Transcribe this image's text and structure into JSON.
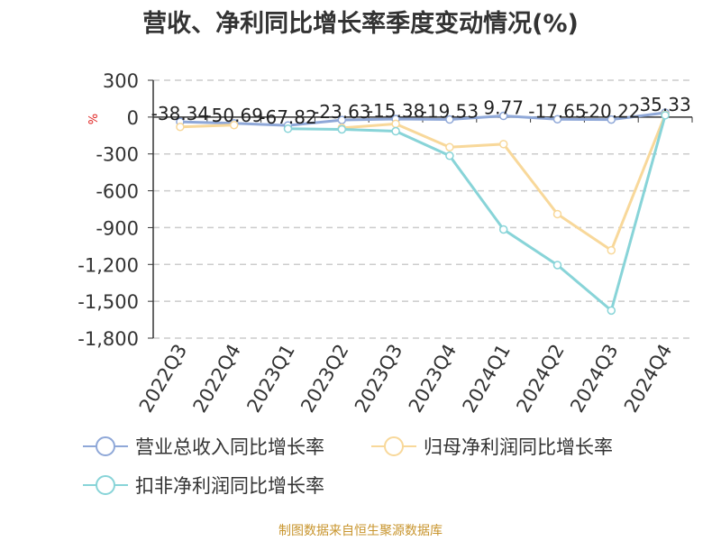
{
  "title": "营收、净利同比增长率季度变动情况(%)",
  "y_unit": "%",
  "source": "制图数据来自恒生聚源数据库",
  "chart_data": {
    "type": "line",
    "title": "营收、净利同比增长率季度变动情况(%)",
    "categories": [
      "2022Q3",
      "2022Q4",
      "2023Q1",
      "2023Q2",
      "2023Q3",
      "2023Q4",
      "2024Q1",
      "2024Q2",
      "2024Q3",
      "2024Q4"
    ],
    "ylim": [
      -1800,
      300
    ],
    "yticks": [
      300,
      0,
      -300,
      -600,
      -900,
      -1200,
      -1500,
      -1800
    ],
    "ytick_labels": [
      "300",
      "0",
      "-300",
      "-600",
      "-900",
      "-1,200",
      "-1,500",
      "-1,800"
    ],
    "grid": true,
    "legend_position": "bottom",
    "series": [
      {
        "name": "营业总收入同比增长率",
        "color": "#8fa8d8",
        "values": [
          -38.34,
          -50.69,
          -67.82,
          -23.63,
          -15.38,
          -19.53,
          9.77,
          -17.65,
          -20.22,
          35.33
        ],
        "labels": [
          "-38.34",
          "-50.69",
          "-67.82",
          "-23.63",
          "-15.38",
          "-19.53",
          "9.77",
          "-17.65",
          "-20.22",
          "35.33"
        ]
      },
      {
        "name": "归母净利润同比增长率",
        "color": "#f8d89a",
        "values": [
          -80,
          -65,
          null,
          -88,
          -55,
          -245,
          -220,
          -790,
          -1085,
          20
        ]
      },
      {
        "name": "扣非净利润同比增长率",
        "color": "#88d4d8",
        "values": [
          null,
          null,
          -95,
          -100,
          -115,
          -315,
          -915,
          -1205,
          -1575,
          15
        ]
      }
    ]
  }
}
